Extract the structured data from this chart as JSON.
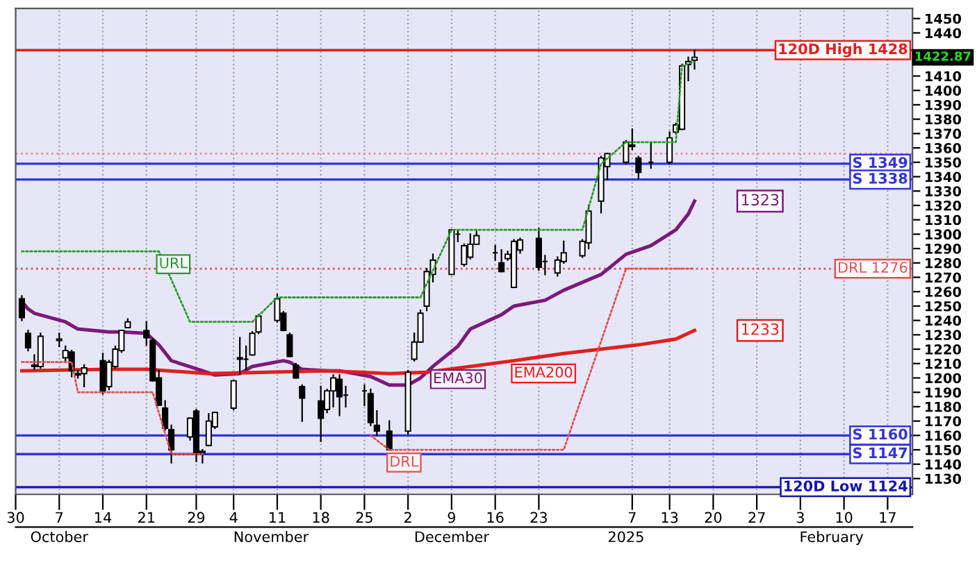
{
  "chart_data": {
    "type": "candlestick",
    "x": [
      "2024-10-01",
      "2024-10-02",
      "2024-10-03",
      "2024-10-04",
      "2024-10-07",
      "2024-10-08",
      "2024-10-09",
      "2024-10-10",
      "2024-10-11",
      "2024-10-14",
      "2024-10-15",
      "2024-10-16",
      "2024-10-17",
      "2024-10-18",
      "2024-10-21",
      "2024-10-22",
      "2024-10-23",
      "2024-10-24",
      "2024-10-25",
      "2024-10-28",
      "2024-10-29",
      "2024-10-30",
      "2024-10-31",
      "2024-11-01",
      "2024-11-04",
      "2024-11-05",
      "2024-11-06",
      "2024-11-07",
      "2024-11-08",
      "2024-11-11",
      "2024-11-12",
      "2024-11-13",
      "2024-11-14",
      "2024-11-15",
      "2024-11-18",
      "2024-11-19",
      "2024-11-20",
      "2024-11-21",
      "2024-11-22",
      "2024-11-25",
      "2024-11-26",
      "2024-11-27",
      "2024-11-29",
      "2024-12-02",
      "2024-12-03",
      "2024-12-04",
      "2024-12-05",
      "2024-12-06",
      "2024-12-09",
      "2024-12-10",
      "2024-12-11",
      "2024-12-12",
      "2024-12-13",
      "2024-12-16",
      "2024-12-17",
      "2024-12-18",
      "2024-12-19",
      "2024-12-20",
      "2024-12-23",
      "2024-12-24",
      "2024-12-26",
      "2024-12-27",
      "2024-12-30",
      "2024-12-31",
      "2025-01-02",
      "2025-01-03",
      "2025-01-06",
      "2025-01-07",
      "2025-01-08",
      "2025-01-10",
      "2025-01-13",
      "2025-01-14",
      "2025-01-15",
      "2025-01-16",
      "2025-01-17"
    ],
    "ohlc": [
      [
        1255,
        1257,
        1240,
        1242
      ],
      [
        1231,
        1233,
        1219,
        1221
      ],
      [
        1209,
        1216,
        1206,
        1208
      ],
      [
        1208,
        1231,
        1207,
        1229
      ],
      [
        1226,
        1231,
        1222,
        1227
      ],
      [
        1214,
        1222,
        1211,
        1219
      ],
      [
        1218,
        1219,
        1201,
        1205
      ],
      [
        1203,
        1205,
        1200,
        1202
      ],
      [
        1203,
        1209,
        1194,
        1207
      ],
      [
        1212,
        1217,
        1189,
        1191
      ],
      [
        1194,
        1212,
        1192,
        1211
      ],
      [
        1208,
        1222,
        1207,
        1220
      ],
      [
        1219,
        1233,
        1218,
        1233
      ],
      [
        1235,
        1241,
        1235,
        1239
      ],
      [
        1233,
        1239,
        1223,
        1228
      ],
      [
        1226,
        1227,
        1198,
        1198
      ],
      [
        1200,
        1205,
        1181,
        1181
      ],
      [
        1179,
        1184,
        1164,
        1165
      ],
      [
        1164,
        1167,
        1141,
        1150
      ],
      [
        1159,
        1172,
        1157,
        1172
      ],
      [
        1177,
        1178,
        1142,
        1148
      ],
      [
        1148,
        1150,
        1141,
        1149
      ],
      [
        1153,
        1175,
        1153,
        1170
      ],
      [
        1166,
        1176,
        1165,
        1176
      ],
      [
        1179,
        1198,
        1178,
        1198
      ],
      [
        1213,
        1228,
        1203,
        1214
      ],
      [
        1213,
        1222,
        1206,
        1213
      ],
      [
        1216,
        1232,
        1216,
        1231
      ],
      [
        1232,
        1244,
        1231,
        1243
      ],
      [
        1240,
        1258,
        1239,
        1255
      ],
      [
        1245,
        1246,
        1233,
        1233
      ],
      [
        1230,
        1231,
        1215,
        1215
      ],
      [
        1209,
        1210,
        1200,
        1200
      ],
      [
        1194,
        1195,
        1170,
        1186
      ],
      [
        1184,
        1194,
        1156,
        1172
      ],
      [
        1178,
        1192,
        1176,
        1191
      ],
      [
        1191,
        1202,
        1180,
        1200
      ],
      [
        1199,
        1202,
        1174,
        1187
      ],
      [
        1188,
        1194,
        1180,
        1188
      ],
      [
        1191,
        1195,
        1181,
        1191
      ],
      [
        1189,
        1192,
        1167,
        1169
      ],
      [
        1167,
        1177,
        1160,
        1163
      ],
      [
        1163,
        1170,
        1150,
        1150
      ],
      [
        1163,
        1205,
        1161,
        1204
      ],
      [
        1213,
        1231,
        1212,
        1225
      ],
      [
        1225,
        1247,
        1225,
        1245
      ],
      [
        1250,
        1276,
        1247,
        1274
      ],
      [
        1272,
        1286,
        1267,
        1282
      ],
      [
        1272,
        1303,
        1272,
        1303
      ],
      [
        1300,
        1303,
        1295,
        1300
      ],
      [
        1279,
        1293,
        1278,
        1292
      ],
      [
        1284,
        1300,
        1283,
        1293
      ],
      [
        1293,
        1303,
        1293,
        1299
      ],
      [
        1287,
        1292,
        1282,
        1287
      ],
      [
        1280,
        1289,
        1274,
        1274
      ],
      [
        1283,
        1288,
        1282,
        1286
      ],
      [
        1263,
        1296,
        1263,
        1295
      ],
      [
        1289,
        1297,
        1287,
        1296
      ],
      [
        1297,
        1304,
        1275,
        1277
      ],
      [
        1281,
        1285,
        1272,
        1281
      ],
      [
        1273,
        1284,
        1271,
        1282
      ],
      [
        1281,
        1295,
        1280,
        1287
      ],
      [
        1285,
        1296,
        1284,
        1295
      ],
      [
        1294,
        1320,
        1290,
        1316
      ],
      [
        1323,
        1354,
        1315,
        1353
      ],
      [
        1347,
        1356,
        1338,
        1356
      ],
      [
        1350,
        1365,
        1349,
        1364
      ],
      [
        1362,
        1373,
        1359,
        1361
      ],
      [
        1353,
        1354,
        1339,
        1343
      ],
      [
        1350,
        1363,
        1346,
        1350
      ],
      [
        1350,
        1371,
        1349,
        1367
      ],
      [
        1371,
        1377,
        1370,
        1376
      ],
      [
        1373,
        1418,
        1373,
        1417
      ],
      [
        1418,
        1423,
        1407,
        1420
      ],
      [
        1421,
        1428,
        1415,
        1423
      ]
    ],
    "series": [
      {
        "type": "line",
        "name": "EMA30",
        "color": "#7a1a7a",
        "line_style": "solid",
        "x": [
          "2024-10-01",
          "2024-10-02",
          "2024-10-03",
          "2024-10-08",
          "2024-10-10",
          "2024-10-15",
          "2024-10-17",
          "2024-10-21",
          "2024-10-23",
          "2024-10-25",
          "2024-10-30",
          "2024-11-01",
          "2024-11-05",
          "2024-11-07",
          "2024-11-12",
          "2024-11-13",
          "2024-11-15",
          "2024-11-19",
          "2024-11-21",
          "2024-11-26",
          "2024-11-29",
          "2024-12-02",
          "2024-12-04",
          "2024-12-06",
          "2024-12-10",
          "2024-12-12",
          "2024-12-17",
          "2024-12-19",
          "2024-12-24",
          "2024-12-27",
          "2025-01-02",
          "2025-01-06",
          "2025-01-10",
          "2025-01-14",
          "2025-01-16",
          "2025-01-17"
        ],
        "values": [
          1253,
          1248,
          1245,
          1239,
          1234,
          1232,
          1232,
          1231,
          1223,
          1212,
          1205,
          1202,
          1203,
          1208,
          1212,
          1211,
          1206,
          1205,
          1205,
          1201,
          1195,
          1195,
          1200,
          1208,
          1222,
          1234,
          1244,
          1250,
          1254,
          1261,
          1272,
          1286,
          1292,
          1303,
          1314,
          1323
        ]
      },
      {
        "type": "line",
        "name": "EMA200",
        "color": "#e02020",
        "line_style": "solid",
        "x": [
          "2024-10-01",
          "2024-10-15",
          "2024-10-21",
          "2024-10-31",
          "2024-11-19",
          "2024-11-29",
          "2024-12-05",
          "2024-12-12",
          "2024-12-19",
          "2024-12-27",
          "2025-01-08",
          "2025-01-14",
          "2025-01-17"
        ],
        "values": [
          1205,
          1206,
          1206,
          1203,
          1205,
          1203,
          1204,
          1208,
          1212,
          1217,
          1223,
          1227,
          1233
        ]
      },
      {
        "type": "line",
        "name": "URL",
        "color": "#2a9a2a",
        "line_style": "dotted",
        "x": [
          "2024-10-01",
          "2024-10-23",
          "2024-10-28",
          "2024-11-07",
          "2024-11-11",
          "2024-12-04",
          "2024-12-09",
          "2024-12-30",
          "2025-01-02",
          "2025-01-06",
          "2025-01-14",
          "2025-01-15",
          "2025-01-17"
        ],
        "values": [
          1288,
          1288,
          1239,
          1239,
          1256,
          1256,
          1303,
          1303,
          1349,
          1364,
          1364,
          1417,
          1420
        ]
      },
      {
        "type": "line",
        "name": "DRL",
        "color": "#e05050",
        "line_style": "dotted",
        "x": [
          "2024-10-01",
          "2024-10-09",
          "2024-10-10",
          "2024-10-22",
          "2024-10-25",
          "2024-10-30",
          "2024-11-15",
          "2024-11-26",
          "2024-11-29",
          "2024-12-27",
          "2025-01-06",
          "2025-01-17"
        ],
        "values": [
          1211,
          1211,
          1190,
          1190,
          1147,
          1147,
          null,
          1160,
          1150,
          1150,
          1276,
          1276
        ]
      }
    ],
    "ref_lines": [
      {
        "axis": "y",
        "value": 1428,
        "label": "120D High 1428",
        "color": "#e02020",
        "line_style": "solid"
      },
      {
        "axis": "y",
        "value": 1356,
        "label": null,
        "color": "#e89090",
        "line_style": "dotted"
      },
      {
        "axis": "y",
        "value": 1349,
        "label": "S 1349",
        "color": "#3333dd",
        "line_style": "solid"
      },
      {
        "axis": "y",
        "value": 1338,
        "label": "S 1338",
        "color": "#3333dd",
        "line_style": "solid"
      },
      {
        "axis": "y",
        "value": 1276,
        "label": "DRL 1276",
        "color": "#e05050",
        "line_style": "dotted"
      },
      {
        "axis": "y",
        "value": 1160,
        "label": "S 1160",
        "color": "#3333dd",
        "line_style": "solid"
      },
      {
        "axis": "y",
        "value": 1147,
        "label": "S 1147",
        "color": "#3333dd",
        "line_style": "solid"
      },
      {
        "axis": "y",
        "value": 1124,
        "label": "120D Low 1124",
        "color": "#1515b0",
        "line_style": "solid"
      }
    ],
    "annotations": [
      "1422.87",
      {
        "text": "1323",
        "y": 1323
      },
      {
        "text": "1233",
        "y": 1233
      }
    ],
    "xlim": [
      "2024-09-30",
      "2025-02-21"
    ],
    "xticks": [
      {
        "value": "2024-09-30",
        "label": "30"
      },
      {
        "value": "2024-10-07",
        "label": "7"
      },
      {
        "value": "2024-10-14",
        "label": "14"
      },
      {
        "value": "2024-10-21",
        "label": "21"
      },
      {
        "value": "2024-10-29",
        "label": "29"
      },
      {
        "value": "2024-11-04",
        "label": "4"
      },
      {
        "value": "2024-11-11",
        "label": "11"
      },
      {
        "value": "2024-11-18",
        "label": "18"
      },
      {
        "value": "2024-11-25",
        "label": "25"
      },
      {
        "value": "2024-12-02",
        "label": "2"
      },
      {
        "value": "2024-12-09",
        "label": "9"
      },
      {
        "value": "2024-12-16",
        "label": "16"
      },
      {
        "value": "2024-12-23",
        "label": "23"
      },
      {
        "value": "2025-01-07",
        "label": "7"
      },
      {
        "value": "2025-01-13",
        "label": "13"
      },
      {
        "value": "2025-01-20",
        "label": "20"
      },
      {
        "value": "2025-01-27",
        "label": "27"
      },
      {
        "value": "2025-02-03",
        "label": "3"
      },
      {
        "value": "2025-02-10",
        "label": "10"
      },
      {
        "value": "2025-02-17",
        "label": "17"
      }
    ],
    "x2lim": [
      "2024-09-30",
      "2025-02-21"
    ],
    "x2ticks": [
      {
        "value": "2024-10-07",
        "label": "October"
      },
      {
        "value": "2024-11-10",
        "label": "November"
      },
      {
        "value": "2024-12-09",
        "label": "December"
      },
      {
        "value": "2025-01-06",
        "label": "2025"
      },
      {
        "value": "2025-02-08",
        "label": "February"
      }
    ],
    "ylim": [
      1119,
      1457
    ],
    "yticks": [
      1130,
      1140,
      1150,
      1160,
      1170,
      1180,
      1190,
      1200,
      1210,
      1220,
      1230,
      1240,
      1250,
      1260,
      1270,
      1280,
      1290,
      1300,
      1310,
      1320,
      1330,
      1340,
      1350,
      1360,
      1370,
      1380,
      1390,
      1400,
      1410,
      1440,
      1450
    ],
    "grid": "x",
    "legend": false
  }
}
